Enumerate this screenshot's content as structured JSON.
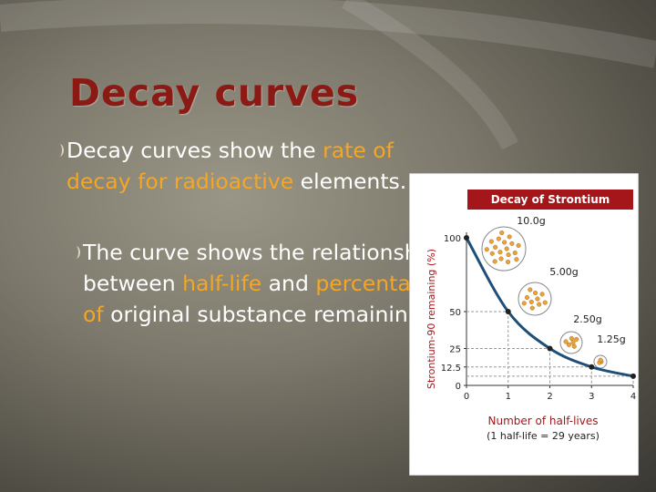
{
  "slide": {
    "title": "Decay curves",
    "bullets": [
      {
        "segments": [
          {
            "text": "Decay curves show the ",
            "highlight": false
          },
          {
            "text": "rate of decay for radioactive",
            "highlight": true
          },
          {
            "text": " elements.",
            "highlight": false
          }
        ]
      },
      {
        "segments": [
          {
            "text": "The curve shows the relationship between ",
            "highlight": false
          },
          {
            "text": "half-life",
            "highlight": true
          },
          {
            "text": " and ",
            "highlight": false
          },
          {
            "text": "percentage of",
            "highlight": true
          },
          {
            "text": " original substance remaining",
            "highlight": false
          }
        ]
      }
    ]
  },
  "figure": {
    "type": "line",
    "title": "Decay of Strontium",
    "y_label": "Strontium-90 remaining (%)",
    "x_label": "Number of half-lives",
    "x_note": "(1 half-life = 29 years)",
    "x": [
      0,
      1,
      2,
      3,
      4
    ],
    "values": [
      100,
      50,
      25,
      12.5,
      6.25
    ],
    "color": "#1f4e79",
    "xlim": [
      0,
      4
    ],
    "ylim": [
      0,
      100
    ],
    "xticks": [
      0,
      1,
      2,
      3,
      4
    ],
    "yticks": [
      0,
      12.5,
      25,
      50,
      100
    ],
    "annotations": [
      "10.0g",
      "5.00g",
      "2.50g",
      "1.25g"
    ]
  }
}
